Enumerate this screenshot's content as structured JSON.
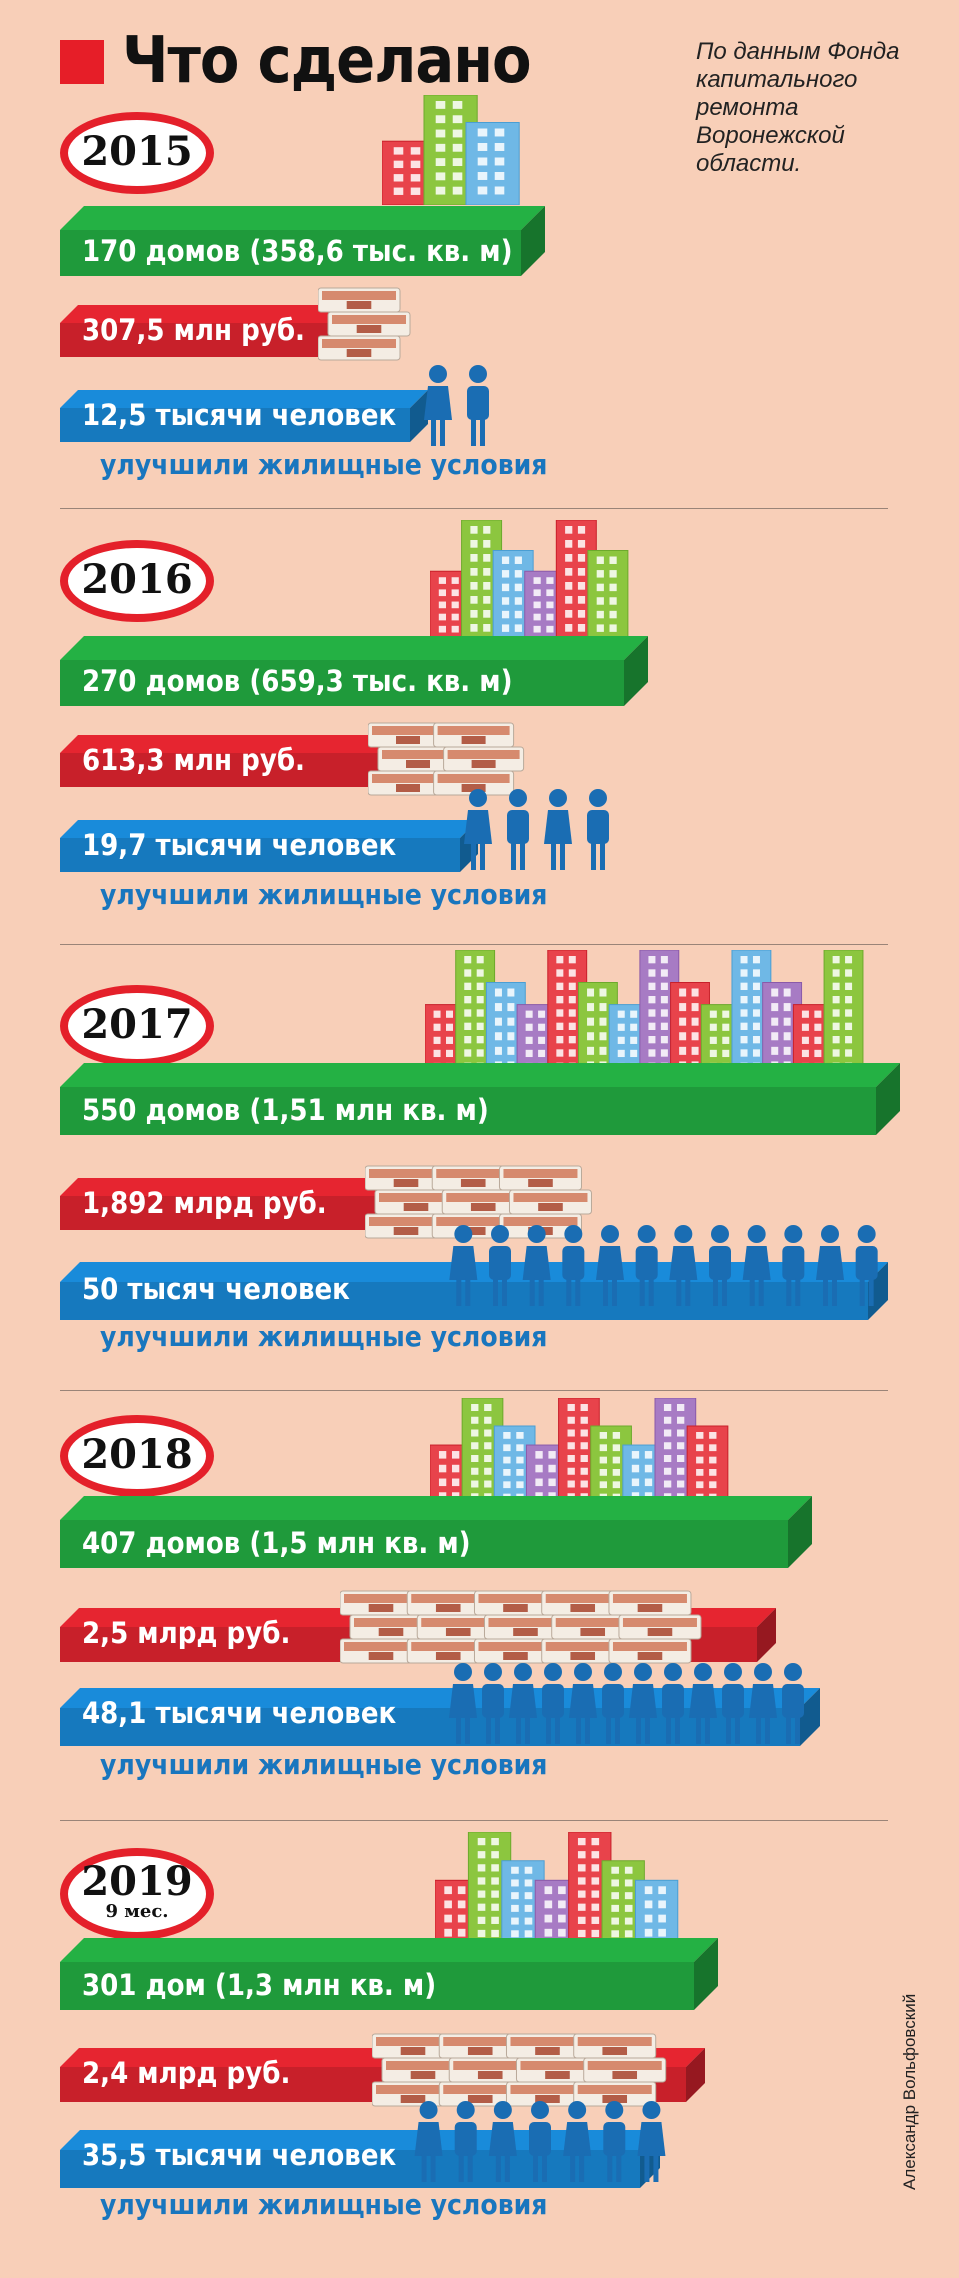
{
  "header": {
    "title": "Что сделано",
    "source": "По данным Фонда капитального ремонта Воронежской области."
  },
  "author": "Александр Вольфовский",
  "common": {
    "improved": "улучшили жилищные условия"
  },
  "colors": {
    "green": "#1f9a3b",
    "red": "#c8202a",
    "blue": "#1679be",
    "circle": "#e4202a",
    "bg": "#f8cfb8"
  },
  "years": [
    {
      "year": "2015",
      "houses": "170 домов (358,6 тыс. кв. м)",
      "money": "307,5 млн руб.",
      "people": "12,5 тысячи человек"
    },
    {
      "year": "2016",
      "houses": "270 домов (659,3 тыс. кв. м)",
      "money": "613,3 млн руб.",
      "people": "19,7 тысячи человек"
    },
    {
      "year": "2017",
      "houses": "550 домов (1,51 млн кв. м)",
      "money": "1,892 млрд руб.",
      "people": "50 тысяч человек"
    },
    {
      "year": "2018",
      "houses": "407 домов (1,5 млн кв. м)",
      "money": "2,5 млрд руб.",
      "people": "48,1 тысячи человек"
    },
    {
      "year": "2019",
      "sub": "9 мес.",
      "houses": "301 дом (1,3 млн кв. м)",
      "money": "2,4 млрд руб.",
      "people": "35,5 тысячи человек"
    }
  ]
}
